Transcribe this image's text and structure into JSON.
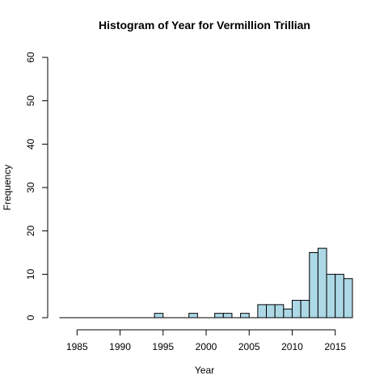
{
  "chart_data": {
    "type": "bar",
    "title": "Histogram of Year for Vermillion Trillian",
    "xlabel": "Year",
    "ylabel": "Frequency",
    "xlim": [
      1983,
      2017
    ],
    "ylim": [
      0,
      60
    ],
    "x_ticks": [
      1985,
      1990,
      1995,
      2000,
      2005,
      2010,
      2015
    ],
    "y_ticks": [
      0,
      10,
      20,
      30,
      40,
      50,
      60
    ],
    "bin_width": 1,
    "bins_start": [
      1983,
      1984,
      1985,
      1986,
      1987,
      1988,
      1989,
      1990,
      1991,
      1992,
      1993,
      1994,
      1995,
      1996,
      1997,
      1998,
      1999,
      2000,
      2001,
      2002,
      2003,
      2004,
      2005,
      2006,
      2007,
      2008,
      2009,
      2010,
      2011,
      2012,
      2013,
      2014,
      2015,
      2016
    ],
    "values": [
      0,
      0,
      0,
      0,
      0,
      0,
      0,
      0,
      0,
      0,
      0,
      1,
      0,
      0,
      0,
      1,
      0,
      0,
      1,
      1,
      0,
      1,
      0,
      3,
      3,
      3,
      2,
      4,
      4,
      15,
      16,
      10,
      10,
      9
    ],
    "colors": {
      "bar_fill": "#add8e6",
      "bar_stroke": "#000000"
    }
  }
}
